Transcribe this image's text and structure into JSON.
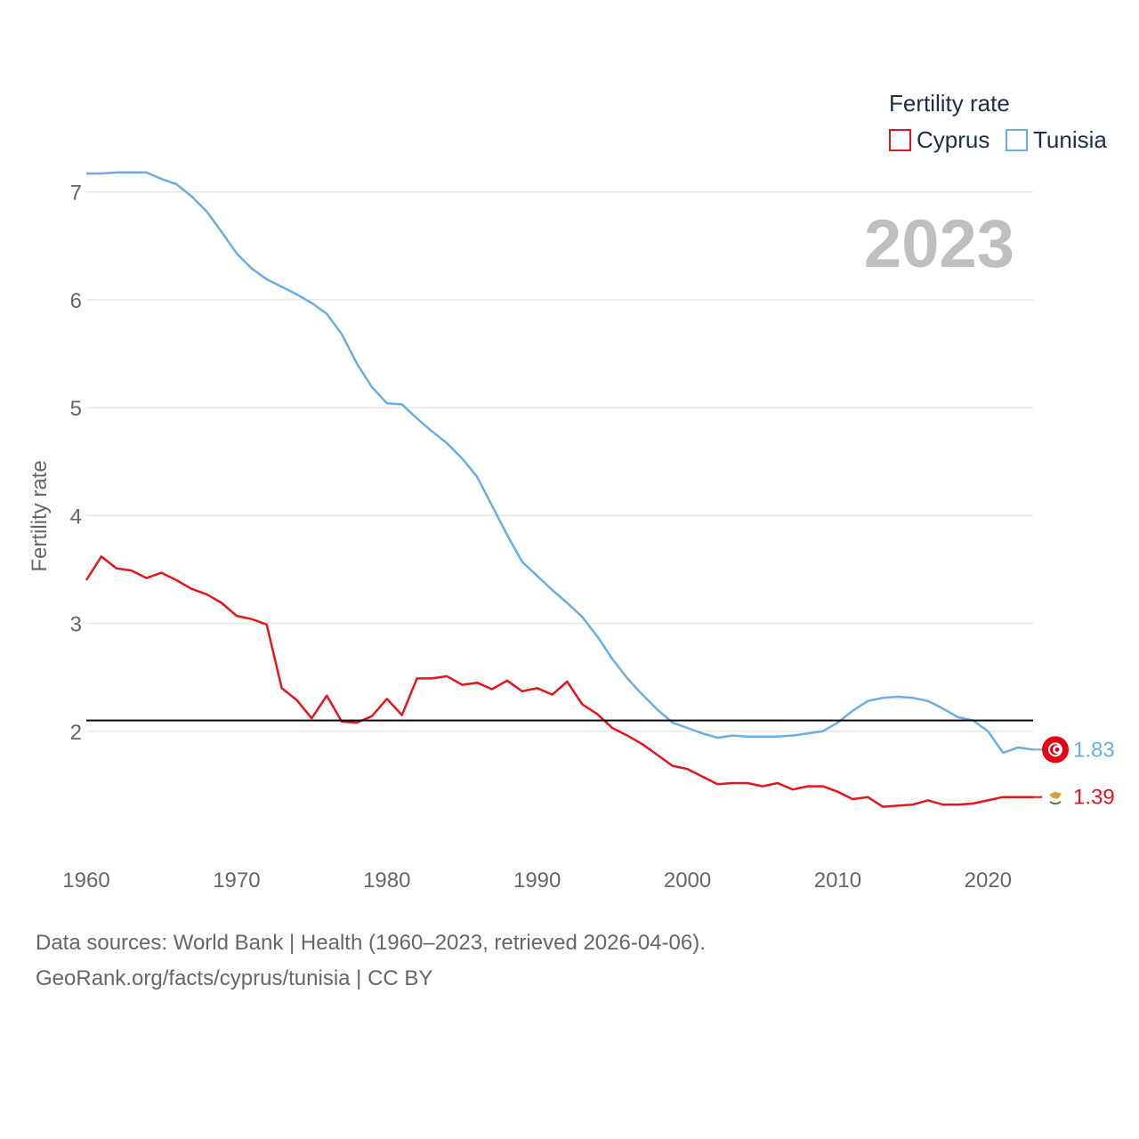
{
  "chart_data": {
    "type": "line",
    "legend_title": "Fertility rate",
    "ylabel": "Fertility rate",
    "year_label": "2023",
    "xlim": [
      1960,
      2023
    ],
    "ylim": [
      1,
      7.5
    ],
    "yticks": [
      2,
      3,
      4,
      5,
      6,
      7
    ],
    "xticks": [
      1960,
      1970,
      1980,
      1990,
      2000,
      2010,
      2020
    ],
    "reference_line": {
      "value": 2.1,
      "color": "#000000"
    },
    "x_start": 1960,
    "series": [
      {
        "name": "Cyprus",
        "color": "#e8141b",
        "end_label": "1.39",
        "flag_icon": "cyprus-flag-icon",
        "values": [
          3.4,
          3.62,
          3.51,
          3.49,
          3.42,
          3.47,
          3.4,
          3.32,
          3.27,
          3.19,
          3.07,
          3.04,
          2.99,
          2.4,
          2.29,
          2.12,
          2.33,
          2.09,
          2.08,
          2.14,
          2.3,
          2.15,
          2.49,
          2.49,
          2.51,
          2.43,
          2.45,
          2.39,
          2.47,
          2.37,
          2.4,
          2.34,
          2.46,
          2.25,
          2.16,
          2.03,
          1.96,
          1.88,
          1.78,
          1.68,
          1.65,
          1.58,
          1.51,
          1.52,
          1.52,
          1.49,
          1.52,
          1.46,
          1.49,
          1.49,
          1.44,
          1.37,
          1.39,
          1.3,
          1.31,
          1.32,
          1.36,
          1.32,
          1.32,
          1.33,
          1.36,
          1.39,
          1.39,
          1.39
        ]
      },
      {
        "name": "Tunisia",
        "color": "#6aaee6",
        "end_label": "1.83",
        "flag_icon": "tunisia-flag-icon",
        "values": [
          7.17,
          7.17,
          7.18,
          7.18,
          7.18,
          7.12,
          7.07,
          6.96,
          6.82,
          6.63,
          6.43,
          6.29,
          6.19,
          6.12,
          6.05,
          5.97,
          5.87,
          5.68,
          5.41,
          5.19,
          5.04,
          5.03,
          4.9,
          4.78,
          4.67,
          4.53,
          4.36,
          4.09,
          3.82,
          3.57,
          3.44,
          3.31,
          3.19,
          3.06,
          2.88,
          2.67,
          2.49,
          2.34,
          2.2,
          2.08,
          2.03,
          1.98,
          1.94,
          1.96,
          1.95,
          1.95,
          1.95,
          1.96,
          1.98,
          2.0,
          2.08,
          2.19,
          2.28,
          2.31,
          2.32,
          2.31,
          2.28,
          2.21,
          2.13,
          2.1,
          2.0,
          1.8,
          1.85,
          1.83
        ]
      }
    ]
  },
  "footer": {
    "source_line": "Data sources: World Bank | Health (1960–2023, retrieved 2026-04-06).",
    "credit_line": "GeoRank.org/facts/cyprus/tunisia | CC BY"
  }
}
